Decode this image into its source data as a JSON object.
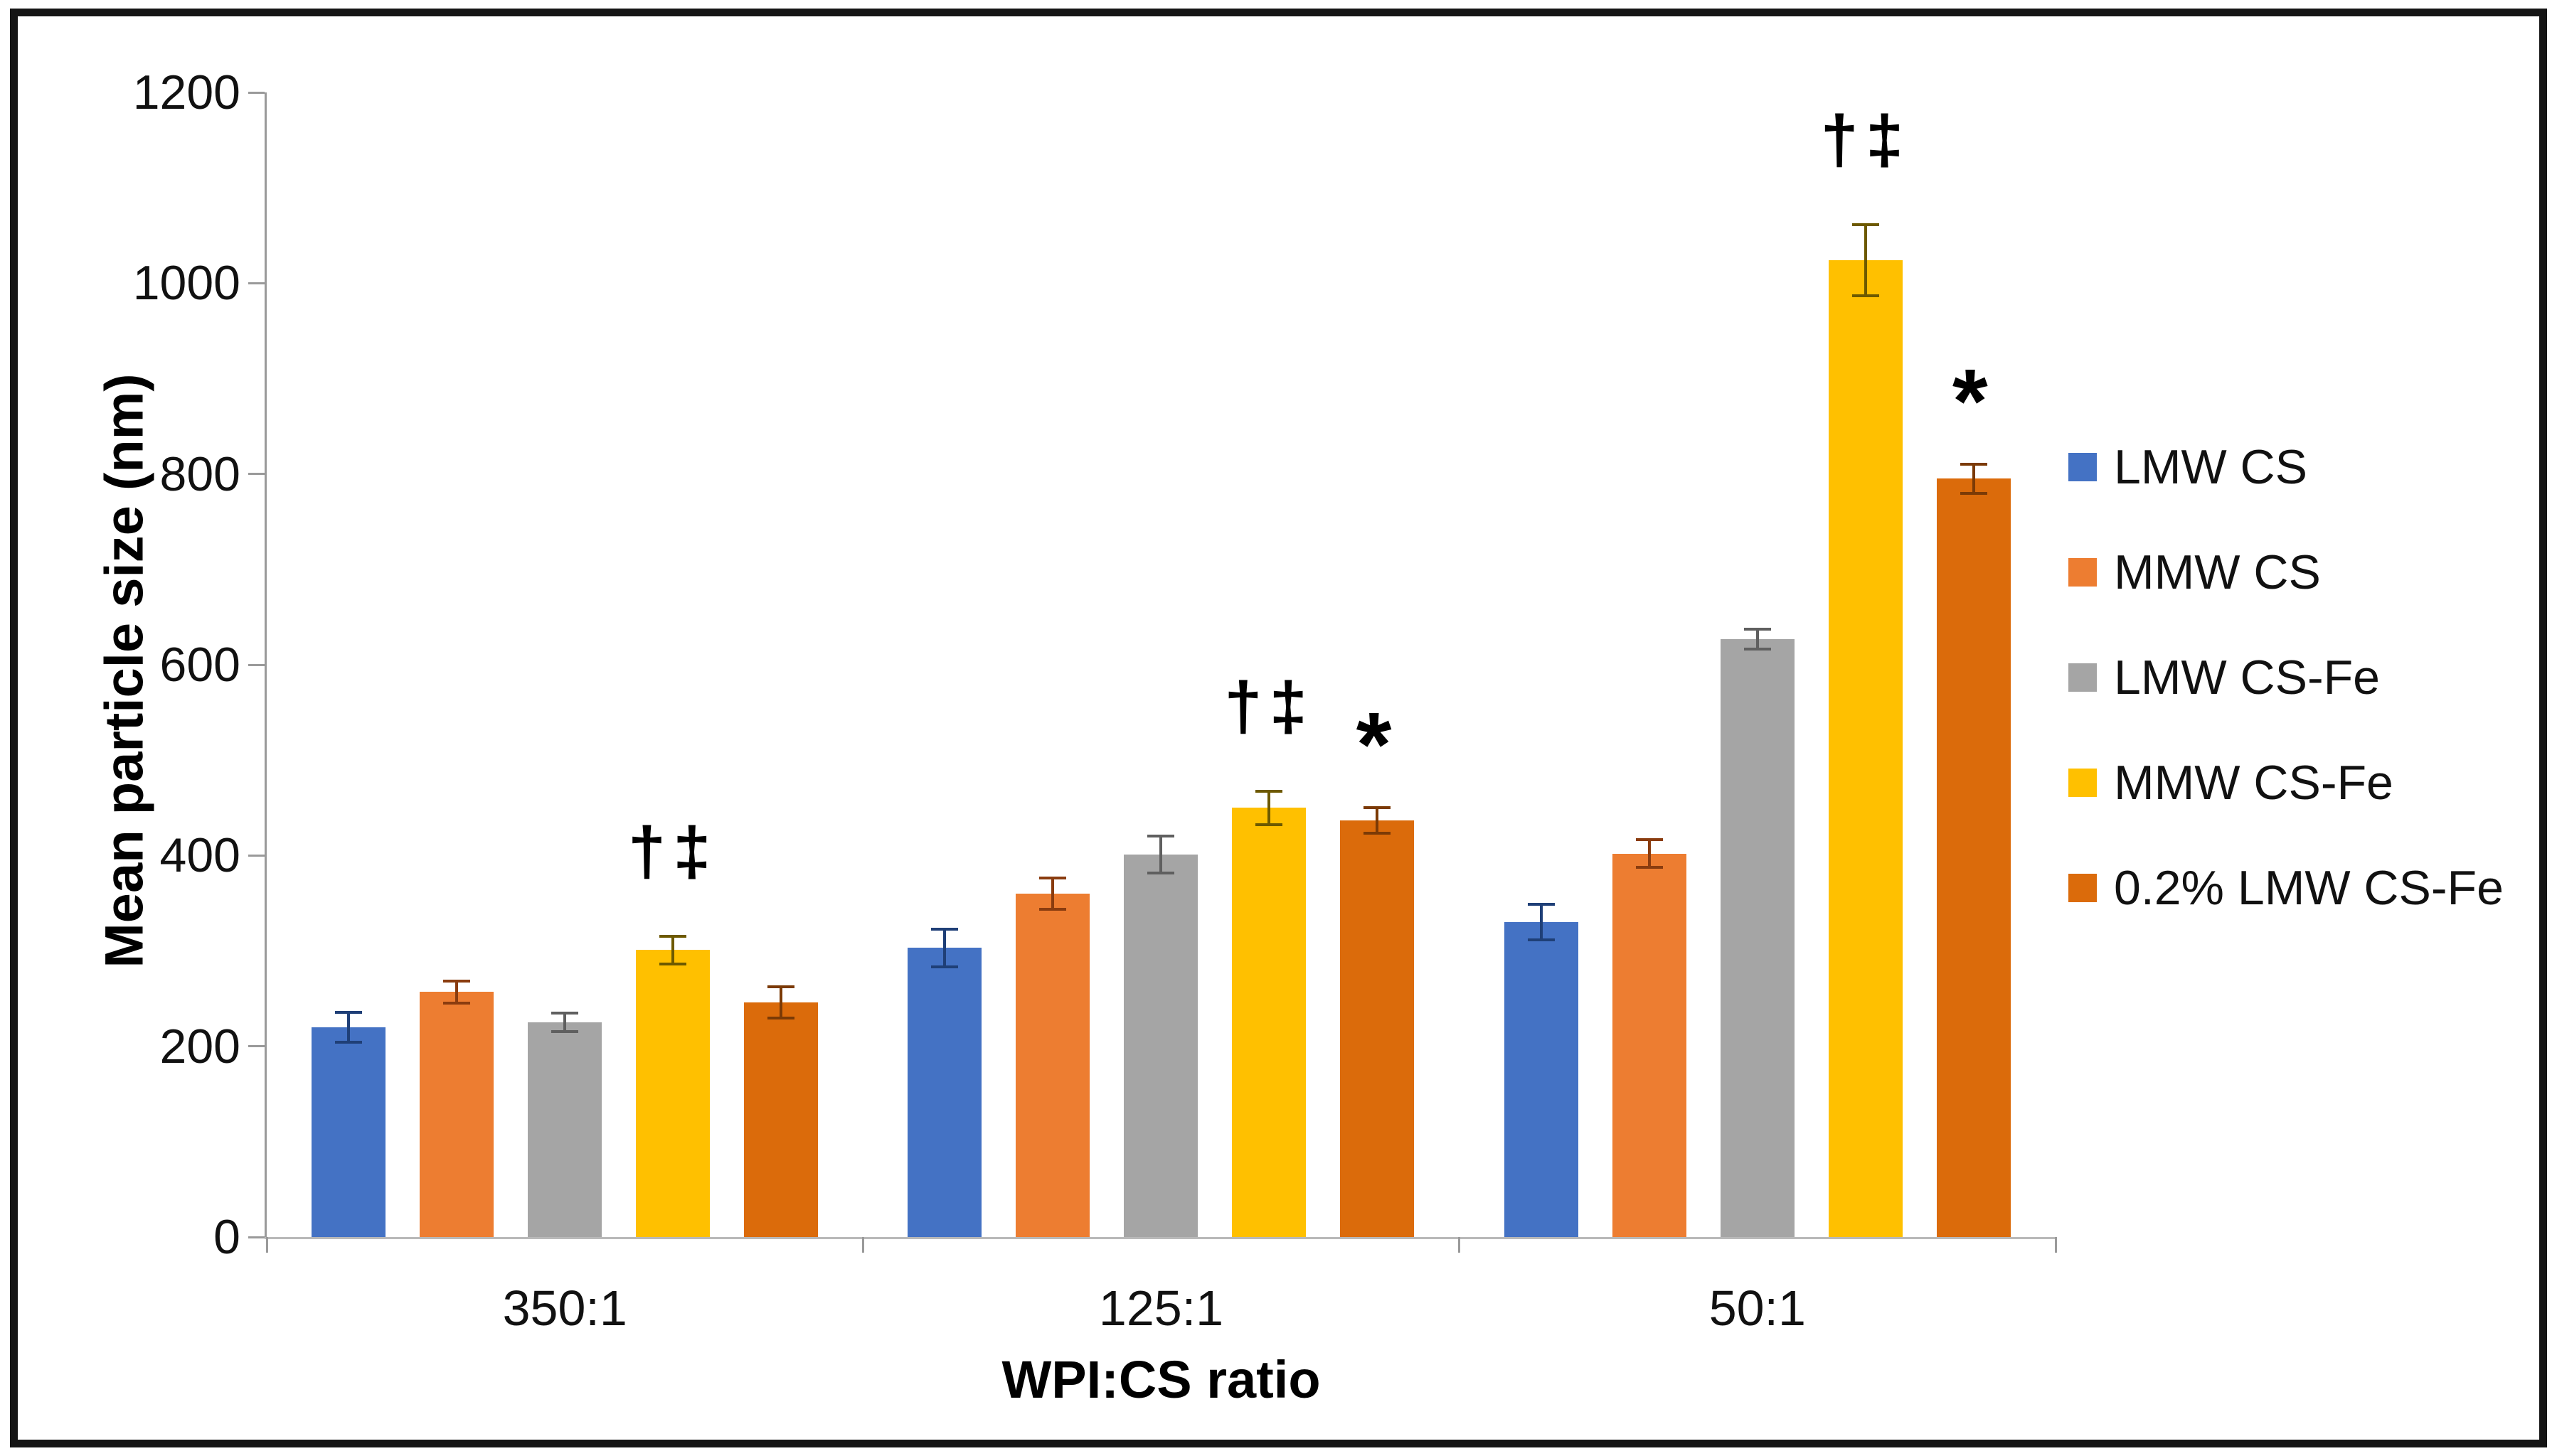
{
  "figure": {
    "background": "#ffffff",
    "border_color": "#151515"
  },
  "chart_data": {
    "type": "bar",
    "title": "",
    "xlabel": "WPI:CS ratio",
    "ylabel": "Mean particle size (nm)",
    "ylim": [
      0,
      1200
    ],
    "yticks": [
      0,
      200,
      400,
      600,
      800,
      1000,
      1200
    ],
    "grid": "off",
    "legend_position": "right",
    "categories": [
      "350:1",
      "125:1",
      "50:1"
    ],
    "series": [
      {
        "name": "LMW CS",
        "color": "#4472C4",
        "err_color": "#1f3f77",
        "values": [
          220,
          303,
          330
        ],
        "errors": [
          17,
          21,
          20
        ],
        "annotations": [
          "",
          "",
          ""
        ]
      },
      {
        "name": "MMW CS",
        "color": "#ED7D31",
        "err_color": "#8a3c0f",
        "values": [
          257,
          360,
          402
        ],
        "errors": [
          13,
          18,
          16
        ],
        "annotations": [
          "",
          "",
          ""
        ]
      },
      {
        "name": "LMW CS-Fe",
        "color": "#A5A5A5",
        "err_color": "#5f5f5f",
        "values": [
          225,
          401,
          627
        ],
        "errors": [
          11,
          21,
          12
        ],
        "annotations": [
          "",
          "",
          ""
        ]
      },
      {
        "name": "MMW CS-Fe",
        "color": "#FFC000",
        "err_color": "#6d5900",
        "values": [
          301,
          450,
          1024
        ],
        "errors": [
          16,
          19,
          39
        ],
        "annotations": [
          "†‡",
          "†‡",
          "†‡"
        ]
      },
      {
        "name": "0.2% LMW CS-Fe",
        "color": "#DB6B0B",
        "err_color": "#7b3a06",
        "values": [
          246,
          437,
          795
        ],
        "errors": [
          18,
          15,
          17
        ],
        "annotations": [
          "",
          "*",
          "*"
        ]
      }
    ]
  }
}
